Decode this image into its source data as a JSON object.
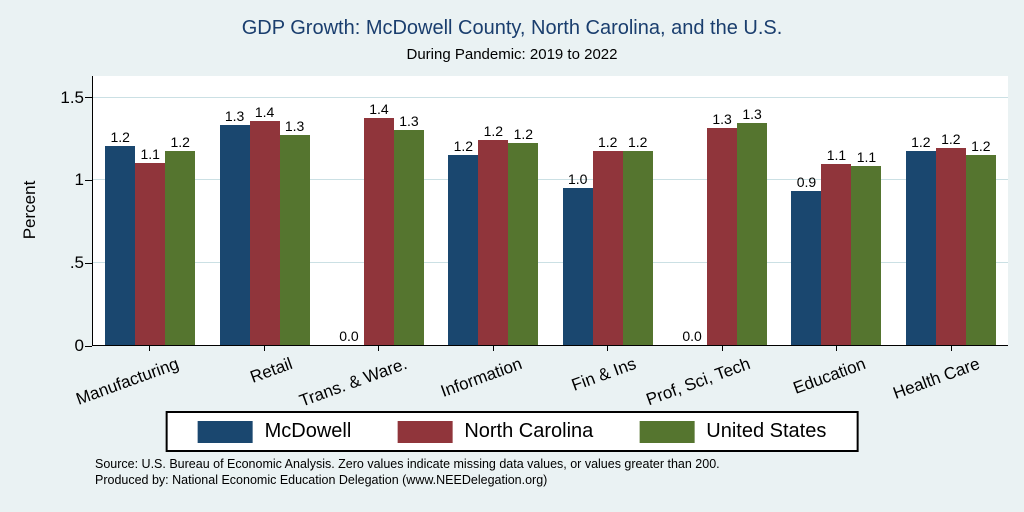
{
  "header": {
    "title": "GDP Growth: McDowell County, North Carolina, and the U.S.",
    "subtitle": "During Pandemic: 2019 to 2022"
  },
  "axes": {
    "ylabel": "Percent"
  },
  "footer": {
    "line1": "Source: U.S. Bureau of Economic Analysis. Zero values indicate missing data values, or values greater than 200.",
    "line2": "Produced by: National Economic Education Delegation (www.NEEDelegation.org)"
  },
  "colors": {
    "background": "#EAF2F3",
    "plot_background": "#FFFFFF",
    "title": "#1A3E6E",
    "gridline": "#CBE0E4",
    "mcdowell": "#1A476F",
    "north_carolina": "#90353B",
    "united_states": "#55752F"
  },
  "chart_data": {
    "type": "bar",
    "title": "GDP Growth: McDowell County, North Carolina, and the U.S.",
    "subtitle": "During Pandemic: 2019 to 2022",
    "xlabel": "",
    "ylabel": "Percent",
    "categories": [
      "Manufacturing",
      "Retail",
      "Trans. & Ware.",
      "Information",
      "Fin & Ins",
      "Prof, Sci, Tech",
      "Education",
      "Health Care"
    ],
    "series": [
      {
        "name": "McDowell",
        "color": "#1A476F",
        "values": [
          1.2,
          1.33,
          0.0,
          1.15,
          0.95,
          0.0,
          0.93,
          1.17
        ],
        "labels": [
          "1.2",
          "1.3",
          "0.0",
          "1.2",
          "1.0",
          "0.0",
          "0.9",
          "1.2"
        ]
      },
      {
        "name": "North Carolina",
        "color": "#90353B",
        "values": [
          1.1,
          1.35,
          1.37,
          1.24,
          1.17,
          1.31,
          1.09,
          1.19
        ],
        "labels": [
          "1.1",
          "1.4",
          "1.4",
          "1.2",
          "1.2",
          "1.3",
          "1.1",
          "1.2"
        ]
      },
      {
        "name": "United States",
        "color": "#55752F",
        "values": [
          1.17,
          1.27,
          1.3,
          1.22,
          1.17,
          1.34,
          1.08,
          1.15
        ],
        "labels": [
          "1.2",
          "1.3",
          "1.3",
          "1.2",
          "1.2",
          "1.3",
          "1.1",
          "1.2"
        ]
      }
    ],
    "yticks": [
      {
        "value": 0,
        "label": "0"
      },
      {
        "value": 0.5,
        "label": ".5"
      },
      {
        "value": 1,
        "label": "1"
      },
      {
        "value": 1.5,
        "label": "1.5"
      }
    ],
    "ylim": [
      0,
      1.63
    ],
    "grid": true,
    "legend_position": "bottom",
    "note": "Zero values indicate missing data values, or values greater than 200."
  }
}
